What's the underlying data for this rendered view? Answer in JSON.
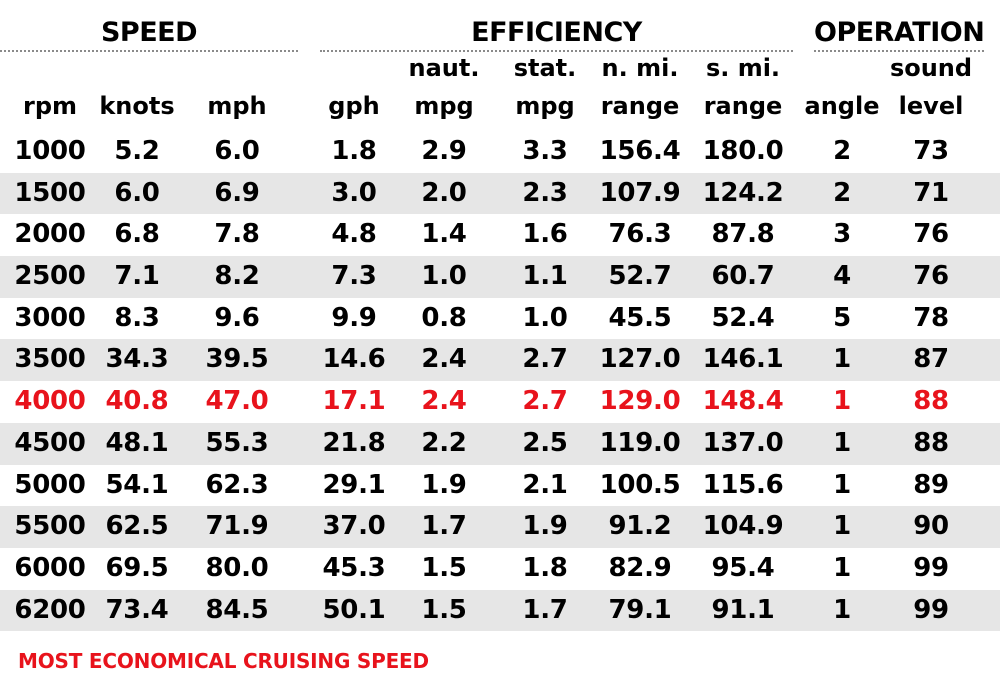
{
  "groups": {
    "speed": "SPEED",
    "efficiency": "EFFICIENCY",
    "operation": "OPERATION"
  },
  "headers": {
    "rpm": [
      "",
      "rpm"
    ],
    "knots": [
      "",
      "knots"
    ],
    "mph": [
      "",
      "mph"
    ],
    "gph": [
      "",
      "gph"
    ],
    "naut_mpg": [
      "naut.",
      "mpg"
    ],
    "stat_mpg": [
      "stat.",
      "mpg"
    ],
    "nmi_range": [
      "n. mi.",
      "range"
    ],
    "smi_range": [
      "s. mi.",
      "range"
    ],
    "angle": [
      "",
      "angle"
    ],
    "sound_level": [
      "sound",
      "level"
    ]
  },
  "chart_data": {
    "type": "table",
    "columns": [
      "rpm",
      "knots",
      "mph",
      "gph",
      "naut. mpg",
      "stat. mpg",
      "n. mi. range",
      "s. mi. range",
      "angle",
      "sound level"
    ],
    "rows": [
      [
        "1000",
        "5.2",
        "6.0",
        "1.8",
        "2.9",
        "3.3",
        "156.4",
        "180.0",
        "2",
        "73"
      ],
      [
        "1500",
        "6.0",
        "6.9",
        "3.0",
        "2.0",
        "2.3",
        "107.9",
        "124.2",
        "2",
        "71"
      ],
      [
        "2000",
        "6.8",
        "7.8",
        "4.8",
        "1.4",
        "1.6",
        "76.3",
        "87.8",
        "3",
        "76"
      ],
      [
        "2500",
        "7.1",
        "8.2",
        "7.3",
        "1.0",
        "1.1",
        "52.7",
        "60.7",
        "4",
        "76"
      ],
      [
        "3000",
        "8.3",
        "9.6",
        "9.9",
        "0.8",
        "1.0",
        "45.5",
        "52.4",
        "5",
        "78"
      ],
      [
        "3500",
        "34.3",
        "39.5",
        "14.6",
        "2.4",
        "2.7",
        "127.0",
        "146.1",
        "1",
        "87"
      ],
      [
        "4000",
        "40.8",
        "47.0",
        "17.1",
        "2.4",
        "2.7",
        "129.0",
        "148.4",
        "1",
        "88"
      ],
      [
        "4500",
        "48.1",
        "55.3",
        "21.8",
        "2.2",
        "2.5",
        "119.0",
        "137.0",
        "1",
        "88"
      ],
      [
        "5000",
        "54.1",
        "62.3",
        "29.1",
        "1.9",
        "2.1",
        "100.5",
        "115.6",
        "1",
        "89"
      ],
      [
        "5500",
        "62.5",
        "71.9",
        "37.0",
        "1.7",
        "1.9",
        "91.2",
        "104.9",
        "1",
        "90"
      ],
      [
        "6000",
        "69.5",
        "80.0",
        "45.3",
        "1.5",
        "1.8",
        "82.9",
        "95.4",
        "1",
        "99"
      ],
      [
        "6200",
        "73.4",
        "84.5",
        "50.1",
        "1.5",
        "1.7",
        "79.1",
        "91.1",
        "1",
        "99"
      ]
    ],
    "highlight_row": "4000"
  },
  "footnote": "MOST ECONOMICAL CRUISING SPEED",
  "colors": {
    "highlight": "#e8131c",
    "shaded_row": "#e6e6e6",
    "text": "#000000"
  }
}
